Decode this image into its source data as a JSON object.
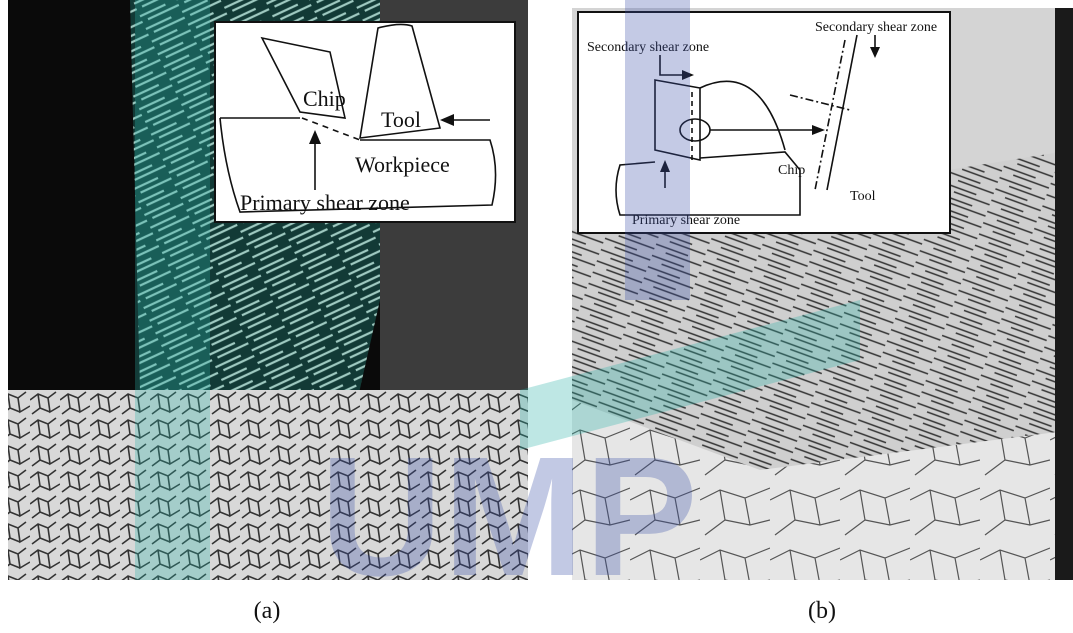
{
  "panels": [
    {
      "caption": "(a)",
      "labels": {
        "chip": "Chip",
        "tool": "Tool",
        "workpiece": "Workpiece",
        "primary": "Primary shear zone"
      }
    },
    {
      "caption": "(b)",
      "labels": {
        "secondary_left": "Secondary shear zone",
        "secondary_right": "Secondary shear zone",
        "chip": "Chip",
        "tool": "Tool",
        "primary": "Primary shear zone"
      }
    }
  ],
  "watermark": "UMP"
}
